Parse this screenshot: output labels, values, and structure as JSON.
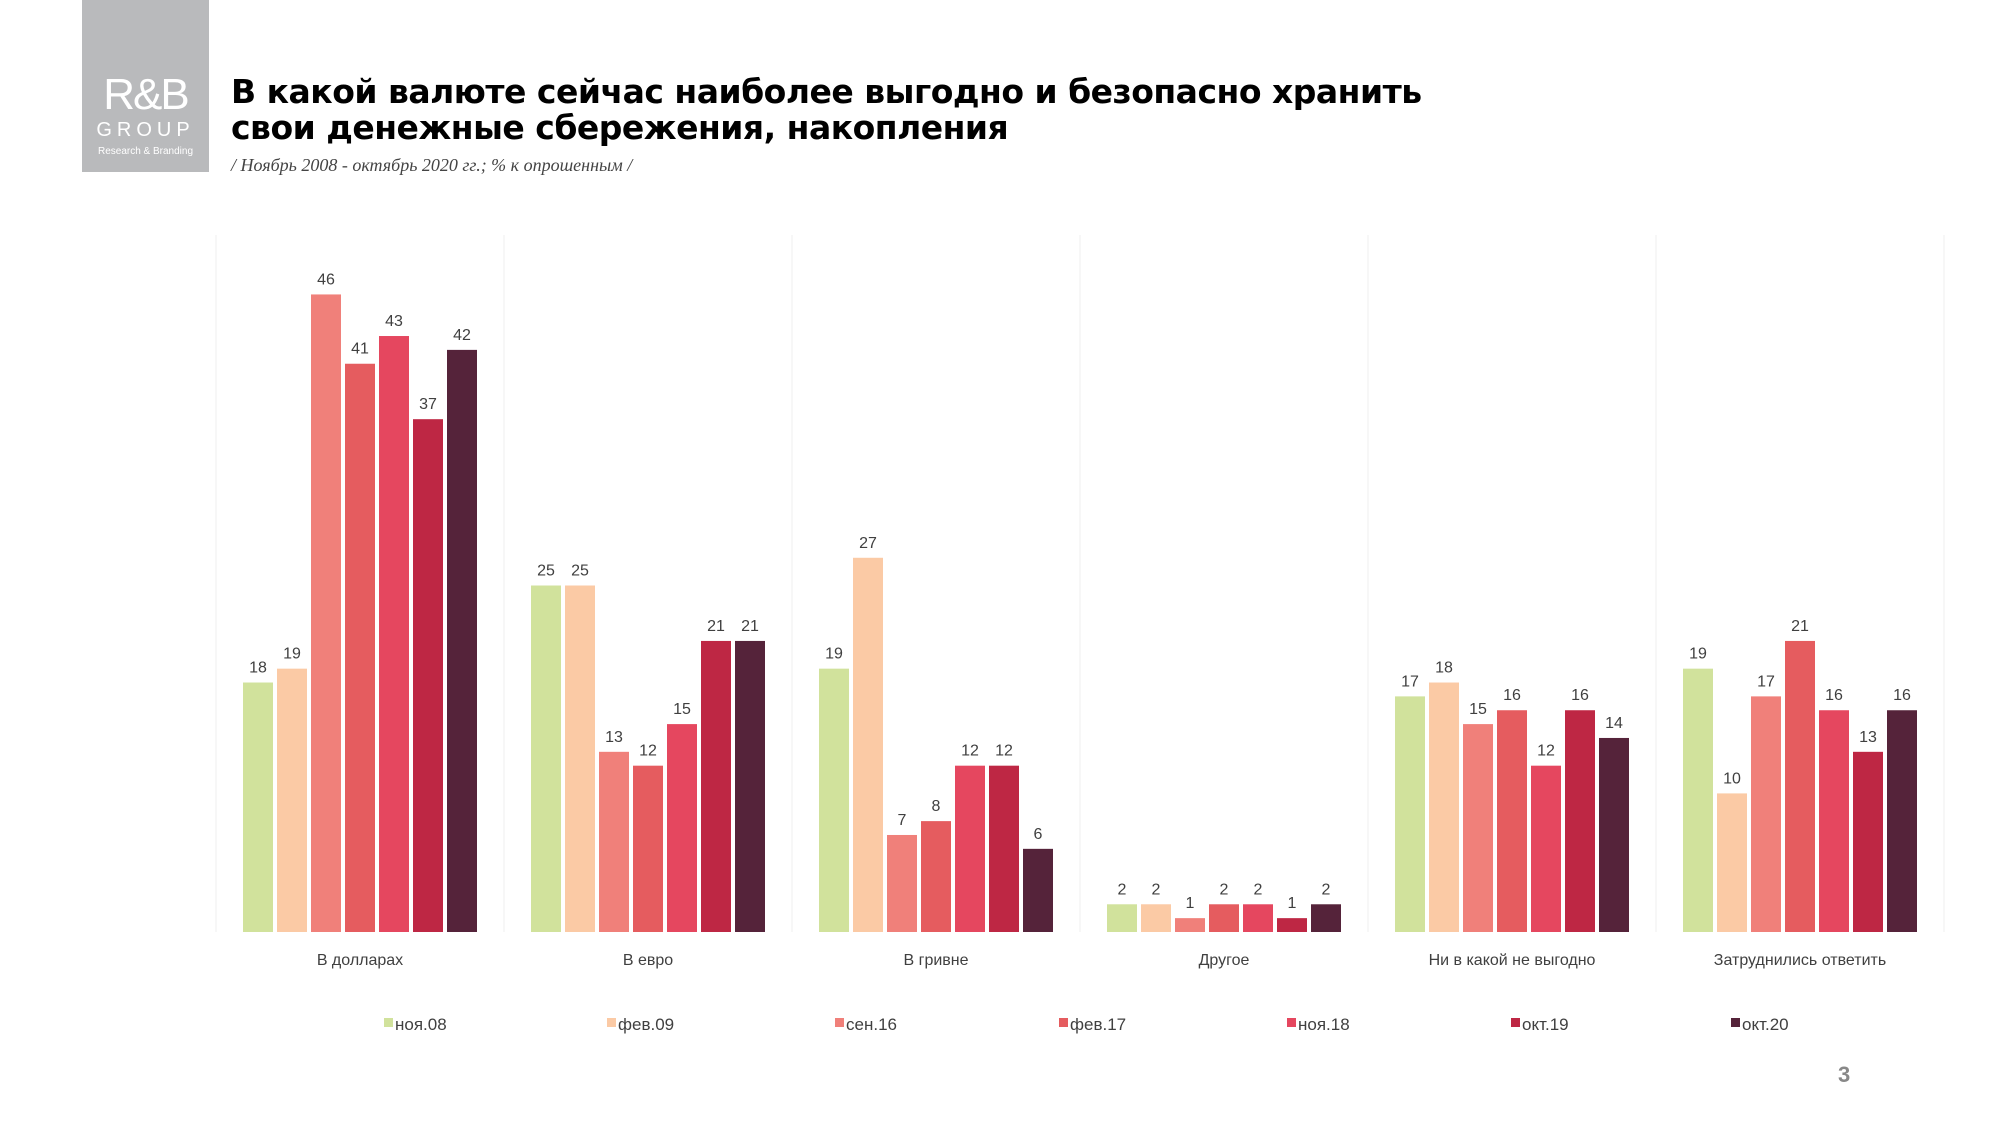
{
  "logo": {
    "line1": "R&B",
    "line2": "GROUP",
    "line3": "Research & Branding"
  },
  "title": "В какой валюте сейчас наиболее выгодно и безопасно хранить свои денежные сбережения, накопления",
  "title_line1": "В какой валюте сейчас наиболее выгодно и безопасно хранить",
  "title_line2": "свои денежные сбережения, накопления",
  "subtitle": "/ Ноябрь 2008 - октябрь 2020 гг.; % к опрошенным  /",
  "page_number": "3",
  "chart_data": {
    "type": "bar",
    "categories": [
      "В долларах",
      "В евро",
      "В гривне",
      "Другое",
      "Ни в какой не выгодно",
      "Затруднились ответить"
    ],
    "series": [
      {
        "name": "ноя.08",
        "color": "#d1e29c",
        "values": [
          18,
          25,
          19,
          2,
          17,
          19
        ]
      },
      {
        "name": "фев.09",
        "color": "#fbcaa5",
        "values": [
          19,
          25,
          27,
          2,
          18,
          10
        ]
      },
      {
        "name": "сен.16",
        "color": "#f0807a",
        "values": [
          46,
          13,
          7,
          1,
          15,
          17
        ]
      },
      {
        "name": "фев.17",
        "color": "#e55c5f",
        "values": [
          41,
          12,
          8,
          2,
          16,
          21
        ]
      },
      {
        "name": "ноя.18",
        "color": "#e5475f",
        "values": [
          43,
          15,
          12,
          2,
          12,
          16
        ]
      },
      {
        "name": "окт.19",
        "color": "#be2744",
        "values": [
          37,
          21,
          12,
          1,
          16,
          13
        ]
      },
      {
        "name": "окт.20",
        "color": "#55233a",
        "values": [
          42,
          21,
          6,
          2,
          14,
          16
        ]
      }
    ],
    "ylim": [
      0,
      50
    ],
    "legend": "bottom",
    "grid": false,
    "data_labels": true
  }
}
